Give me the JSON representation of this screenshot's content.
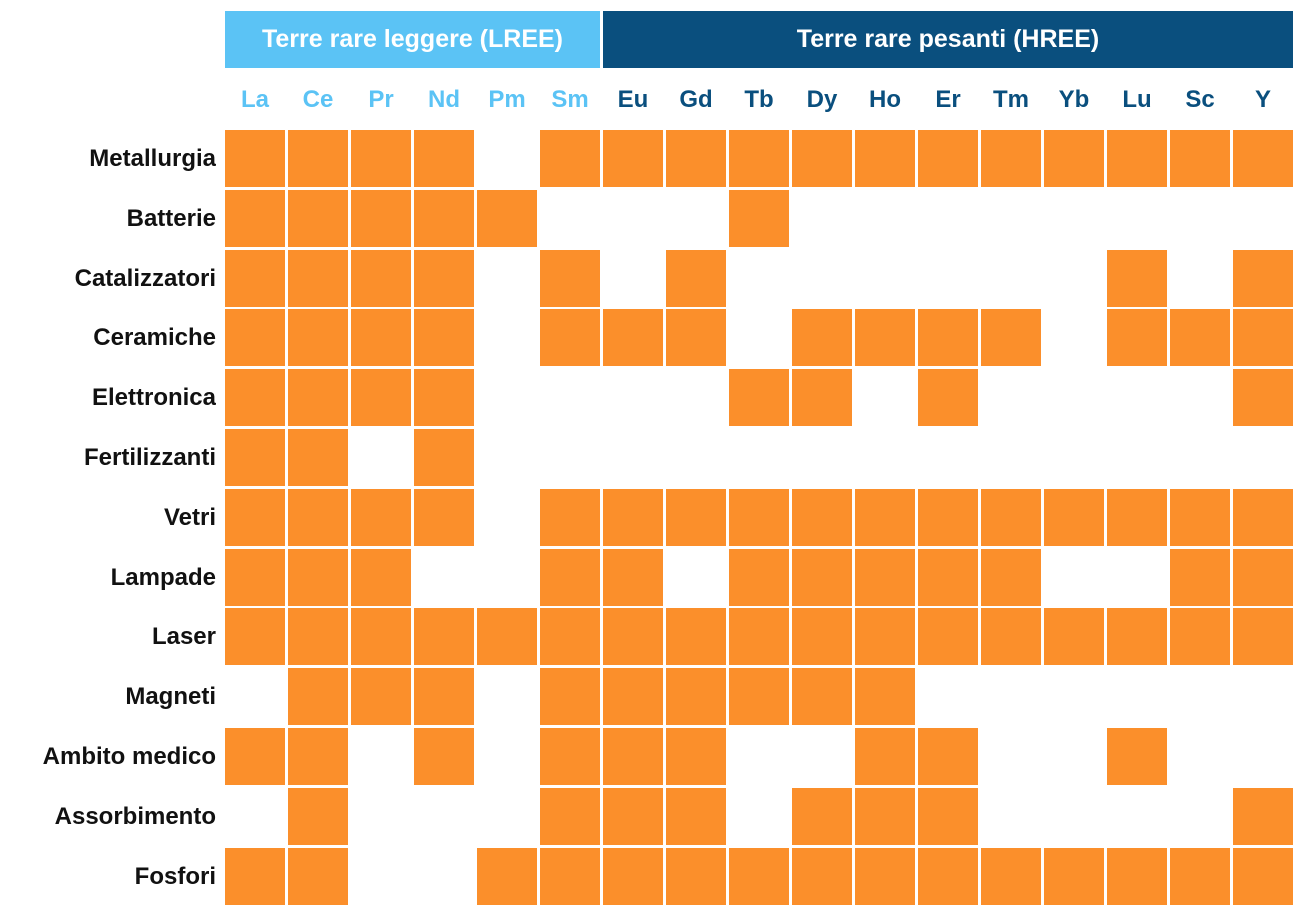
{
  "chart_data": {
    "type": "heatmap",
    "groups": [
      {
        "label": "Terre rare leggere (LREE)",
        "span": 6,
        "color": "#5bc3f5",
        "label_color": "#5bc3f5"
      },
      {
        "label": "Terre rare pesanti (HREE)",
        "span": 11,
        "color": "#0a4f7e",
        "label_color": "#0a4f7e"
      }
    ],
    "columns": [
      "La",
      "Ce",
      "Pr",
      "Nd",
      "Pm",
      "Sm",
      "Eu",
      "Gd",
      "Tb",
      "Dy",
      "Ho",
      "Er",
      "Tm",
      "Yb",
      "Lu",
      "Sc",
      "Y"
    ],
    "rows": [
      "Metallurgia",
      "Batterie",
      "Catalizzatori",
      "Ceramiche",
      "Elettronica",
      "Fertilizzanti",
      "Vetri",
      "Lampade",
      "Laser",
      "Magneti",
      "Ambito medico",
      "Assorbimento",
      "Fosfori"
    ],
    "matrix": [
      [
        1,
        1,
        1,
        1,
        0,
        1,
        1,
        1,
        1,
        1,
        1,
        1,
        1,
        1,
        1,
        1,
        1
      ],
      [
        1,
        1,
        1,
        1,
        1,
        0,
        0,
        0,
        1,
        0,
        0,
        0,
        0,
        0,
        0,
        0,
        0
      ],
      [
        1,
        1,
        1,
        1,
        0,
        1,
        0,
        1,
        0,
        0,
        0,
        0,
        0,
        0,
        1,
        0,
        1
      ],
      [
        1,
        1,
        1,
        1,
        0,
        1,
        1,
        1,
        0,
        1,
        1,
        1,
        1,
        0,
        1,
        1,
        1
      ],
      [
        1,
        1,
        1,
        1,
        0,
        0,
        0,
        0,
        1,
        1,
        0,
        1,
        0,
        0,
        0,
        0,
        1
      ],
      [
        1,
        1,
        0,
        1,
        0,
        0,
        0,
        0,
        0,
        0,
        0,
        0,
        0,
        0,
        0,
        0,
        0
      ],
      [
        1,
        1,
        1,
        1,
        0,
        1,
        1,
        1,
        1,
        1,
        1,
        1,
        1,
        1,
        1,
        1,
        1
      ],
      [
        1,
        1,
        1,
        0,
        0,
        1,
        1,
        0,
        1,
        1,
        1,
        1,
        1,
        0,
        0,
        1,
        1
      ],
      [
        1,
        1,
        1,
        1,
        1,
        1,
        1,
        1,
        1,
        1,
        1,
        1,
        1,
        1,
        1,
        1,
        1
      ],
      [
        0,
        1,
        1,
        1,
        0,
        1,
        1,
        1,
        1,
        1,
        1,
        0,
        0,
        0,
        0,
        0,
        0
      ],
      [
        1,
        1,
        0,
        1,
        0,
        1,
        1,
        1,
        0,
        0,
        1,
        1,
        0,
        0,
        1,
        0,
        0
      ],
      [
        0,
        1,
        0,
        0,
        0,
        1,
        1,
        1,
        0,
        1,
        1,
        1,
        0,
        0,
        0,
        0,
        1
      ],
      [
        1,
        1,
        0,
        0,
        1,
        1,
        1,
        1,
        1,
        1,
        1,
        1,
        1,
        1,
        1,
        1,
        1
      ]
    ],
    "cell_color": "#fb8f2b",
    "grid": false,
    "legend": "none"
  }
}
